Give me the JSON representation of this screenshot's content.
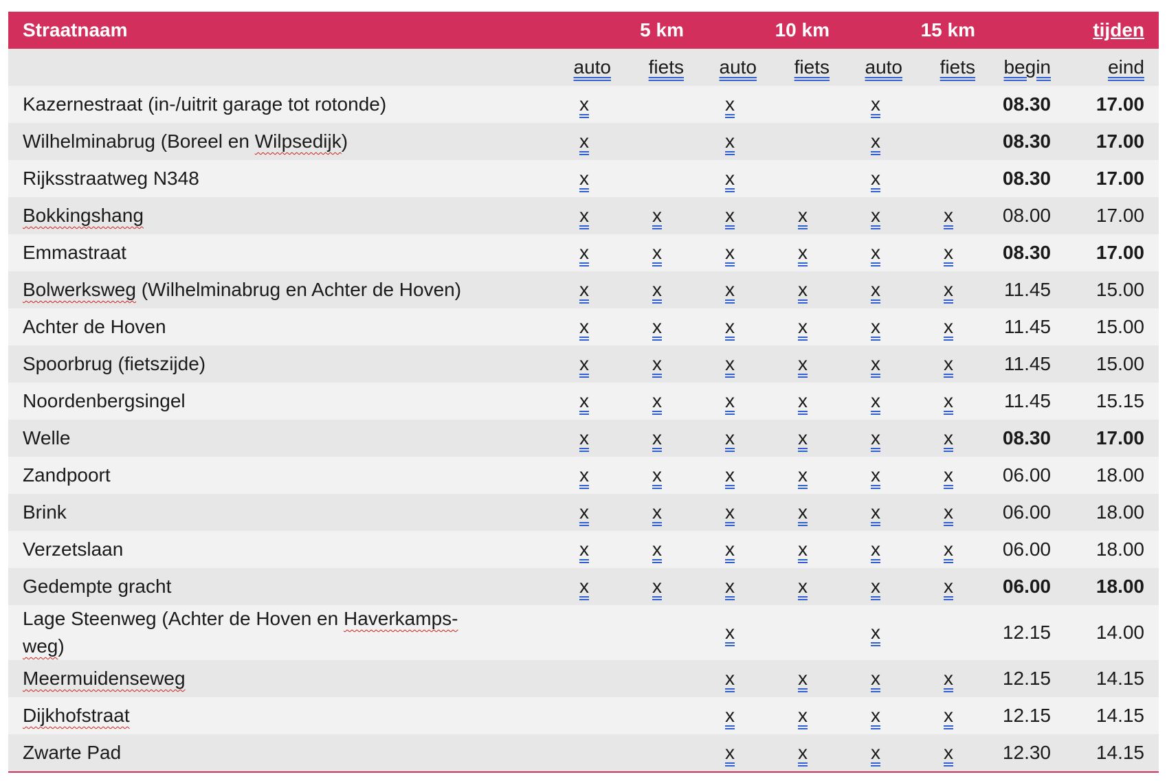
{
  "header": {
    "straatnaam": "Straatnaam",
    "km5": "5 km",
    "km10": "10 km",
    "km15": "15 km",
    "tijden": "tijden"
  },
  "subheader": {
    "cols": [
      "auto",
      "fiets",
      "auto",
      "fiets",
      "auto",
      "fiets"
    ],
    "begin": "begin",
    "eind": "eind"
  },
  "mark": "x",
  "colors": {
    "header": "#d22f5d",
    "row_light": "#f2f2f2",
    "row_dark": "#e7e7e7",
    "underline": "#2f5fd0",
    "spellcheck": "#d0201a"
  },
  "rows": [
    {
      "name": [
        {
          "t": "Kazernestraat (in-/uitrit garage tot rotonde)"
        }
      ],
      "marks": [
        1,
        0,
        1,
        0,
        1,
        0
      ],
      "begin": "08.30",
      "eind": "17.00",
      "bold": true
    },
    {
      "name": [
        {
          "t": "Wilhelminabrug (Boreel en "
        },
        {
          "t": "Wilpsedijk",
          "sq": true
        },
        {
          "t": ")"
        }
      ],
      "marks": [
        1,
        0,
        1,
        0,
        1,
        0
      ],
      "begin": "08.30",
      "eind": "17.00",
      "bold": true
    },
    {
      "name": [
        {
          "t": "Rijksstraatweg N348"
        }
      ],
      "marks": [
        1,
        0,
        1,
        0,
        1,
        0
      ],
      "begin": "08.30",
      "eind": "17.00",
      "bold": true
    },
    {
      "name": [
        {
          "t": "Bokkingshang",
          "sq": true
        }
      ],
      "marks": [
        1,
        1,
        1,
        1,
        1,
        1
      ],
      "begin": "08.00",
      "eind": "17.00",
      "bold": false
    },
    {
      "name": [
        {
          "t": "Emmastraat"
        }
      ],
      "marks": [
        1,
        1,
        1,
        1,
        1,
        1
      ],
      "begin": "08.30",
      "eind": "17.00",
      "bold": true
    },
    {
      "name": [
        {
          "t": "Bolwerksweg",
          "sq": true
        },
        {
          "t": " (Wilhelminabrug en Achter de Hoven)"
        }
      ],
      "marks": [
        1,
        1,
        1,
        1,
        1,
        1
      ],
      "begin": "11.45",
      "eind": "15.00",
      "bold": false
    },
    {
      "name": [
        {
          "t": "Achter de Hoven"
        }
      ],
      "marks": [
        1,
        1,
        1,
        1,
        1,
        1
      ],
      "begin": "11.45",
      "eind": "15.00",
      "bold": false
    },
    {
      "name": [
        {
          "t": "Spoorbrug (fietszijde)"
        }
      ],
      "marks": [
        1,
        1,
        1,
        1,
        1,
        1
      ],
      "begin": "11.45",
      "eind": "15.00",
      "bold": false
    },
    {
      "name": [
        {
          "t": "Noordenbergsingel"
        }
      ],
      "marks": [
        1,
        1,
        1,
        1,
        1,
        1
      ],
      "begin": "11.45",
      "eind": "15.15",
      "bold": false
    },
    {
      "name": [
        {
          "t": "Welle"
        }
      ],
      "marks": [
        1,
        1,
        1,
        1,
        1,
        1
      ],
      "begin": "08.30",
      "eind": "17.00",
      "bold": true
    },
    {
      "name": [
        {
          "t": "Zandpoort"
        }
      ],
      "marks": [
        1,
        1,
        1,
        1,
        1,
        1
      ],
      "begin": "06.00",
      "eind": "18.00",
      "bold": false
    },
    {
      "name": [
        {
          "t": "Brink"
        }
      ],
      "marks": [
        1,
        1,
        1,
        1,
        1,
        1
      ],
      "begin": "06.00",
      "eind": "18.00",
      "bold": false
    },
    {
      "name": [
        {
          "t": "Verzetslaan"
        }
      ],
      "marks": [
        1,
        1,
        1,
        1,
        1,
        1
      ],
      "begin": "06.00",
      "eind": "18.00",
      "bold": false
    },
    {
      "name": [
        {
          "t": "Gedempte gracht"
        }
      ],
      "marks": [
        1,
        1,
        1,
        1,
        1,
        1
      ],
      "begin": "06.00",
      "eind": "18.00",
      "bold": true
    },
    {
      "name": [
        {
          "t": "Lage Steenweg (Achter de Hoven en "
        },
        {
          "t": "Haverkamps-",
          "sq": true
        },
        {
          "t": " "
        },
        {
          "t": "weg",
          "sq": true
        },
        {
          "t": ")"
        }
      ],
      "marks": [
        0,
        0,
        1,
        0,
        1,
        0
      ],
      "begin": "12.15",
      "eind": "14.00",
      "bold": false,
      "tall": true
    },
    {
      "name": [
        {
          "t": "Meermuidenseweg",
          "sq": true
        }
      ],
      "marks": [
        0,
        0,
        1,
        1,
        1,
        1
      ],
      "begin": "12.15",
      "eind": "14.15",
      "bold": false
    },
    {
      "name": [
        {
          "t": "Dijkhofstraat",
          "sq": true
        }
      ],
      "marks": [
        0,
        0,
        1,
        1,
        1,
        1
      ],
      "begin": "12.15",
      "eind": "14.15",
      "bold": false
    },
    {
      "name": [
        {
          "t": "Zwarte Pad"
        }
      ],
      "marks": [
        0,
        0,
        1,
        1,
        1,
        1
      ],
      "begin": "12.30",
      "eind": "14.15",
      "bold": false
    }
  ]
}
